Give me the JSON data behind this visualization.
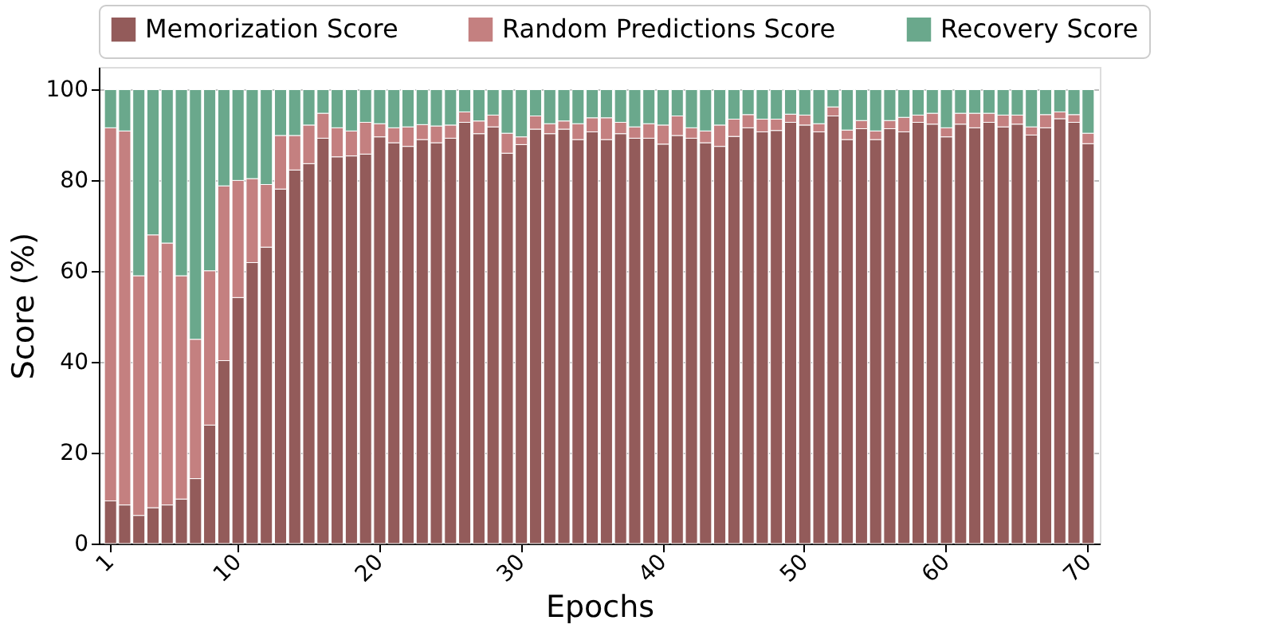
{
  "chart_data": {
    "type": "bar",
    "stacked": true,
    "xlabel": "Epochs",
    "ylabel": "Score (%)",
    "categories": [
      "1",
      null,
      null,
      null,
      null,
      null,
      null,
      null,
      null,
      "10",
      null,
      null,
      null,
      null,
      null,
      null,
      null,
      null,
      null,
      "20",
      null,
      null,
      null,
      null,
      null,
      null,
      null,
      null,
      null,
      "30",
      null,
      null,
      null,
      null,
      null,
      null,
      null,
      null,
      null,
      "40",
      null,
      null,
      null,
      null,
      null,
      null,
      null,
      null,
      null,
      "50",
      null,
      null,
      null,
      null,
      null,
      null,
      null,
      null,
      null,
      "60",
      null,
      null,
      null,
      null,
      null,
      null,
      null,
      null,
      null,
      "70"
    ],
    "ylim": [
      0,
      105
    ],
    "yticks": [
      0,
      20,
      40,
      60,
      80,
      100
    ],
    "grid": "y",
    "legend": "top",
    "series": [
      {
        "name": "Memorization Score",
        "color": "#935b5a",
        "values": [
          9.4,
          8.5,
          6.2,
          7.9,
          8.5,
          9.8,
          14.3,
          26.1,
          40.3,
          54.2,
          61.9,
          65.3,
          78.1,
          82.3,
          83.7,
          89.3,
          85.2,
          85.4,
          85.8,
          89.6,
          88.3,
          87.5,
          89.0,
          88.3,
          89.3,
          92.8,
          90.3,
          91.8,
          86.0,
          87.9,
          91.3,
          90.3,
          91.3,
          89.0,
          90.7,
          89.0,
          90.3,
          89.3,
          89.3,
          88.0,
          89.9,
          89.3,
          88.3,
          87.5,
          89.7,
          91.6,
          90.7,
          91.0,
          92.8,
          92.2,
          90.7,
          94.2,
          89.0,
          91.4,
          89.0,
          91.4,
          90.7,
          92.8,
          92.4,
          89.6,
          92.4,
          91.6,
          92.8,
          91.8,
          92.4,
          90.0,
          91.6,
          93.6,
          92.8,
          88.1
        ]
      },
      {
        "name": "Random Predictions Score",
        "color": "#c48080",
        "values": [
          82.2,
          82.4,
          52.8,
          60.1,
          57.7,
          49.2,
          30.7,
          34.0,
          38.5,
          25.8,
          18.5,
          13.8,
          11.8,
          7.6,
          8.5,
          5.5,
          6.4,
          5.5,
          7.0,
          2.9,
          3.3,
          4.3,
          3.3,
          3.7,
          2.9,
          2.3,
          2.8,
          2.6,
          4.4,
          1.7,
          2.9,
          2.2,
          1.8,
          3.5,
          3.1,
          4.8,
          2.5,
          2.5,
          3.2,
          4.2,
          4.3,
          2.3,
          2.6,
          4.7,
          3.8,
          2.9,
          2.8,
          2.5,
          1.8,
          2.2,
          1.8,
          2.0,
          2.1,
          1.8,
          1.9,
          1.8,
          3.2,
          1.6,
          2.4,
          2.0,
          2.4,
          3.2,
          2.0,
          2.6,
          2.0,
          1.8,
          2.9,
          1.5,
          1.7,
          2.3
        ]
      },
      {
        "name": "Recovery Score",
        "color": "#6aa88c",
        "values": [
          8.4,
          9.1,
          41.0,
          32.0,
          33.8,
          41.0,
          55.0,
          39.9,
          21.2,
          20.0,
          19.6,
          20.9,
          10.1,
          10.1,
          7.8,
          5.2,
          8.4,
          9.1,
          7.2,
          7.5,
          8.4,
          8.2,
          7.7,
          8.0,
          7.8,
          4.9,
          6.9,
          5.6,
          9.6,
          10.4,
          5.8,
          7.5,
          6.9,
          7.5,
          6.2,
          6.2,
          7.2,
          8.2,
          7.5,
          7.8,
          5.8,
          8.4,
          9.1,
          7.8,
          6.5,
          5.5,
          6.5,
          6.5,
          5.4,
          5.6,
          7.5,
          3.8,
          8.9,
          6.8,
          9.1,
          6.8,
          6.1,
          5.6,
          5.2,
          8.4,
          5.2,
          5.2,
          5.2,
          5.6,
          5.6,
          8.2,
          5.5,
          4.9,
          5.5,
          9.6
        ]
      }
    ]
  }
}
